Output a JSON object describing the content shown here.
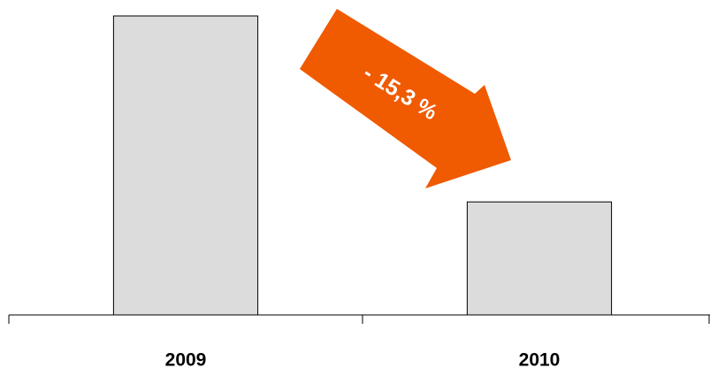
{
  "chart_data": {
    "type": "bar",
    "categories": [
      "2009",
      "2010"
    ],
    "values": [
      100,
      84.7
    ],
    "color": "#dcdcdc",
    "ylim": [
      75.4,
      100
    ],
    "annotation": "- 15,3 %"
  }
}
